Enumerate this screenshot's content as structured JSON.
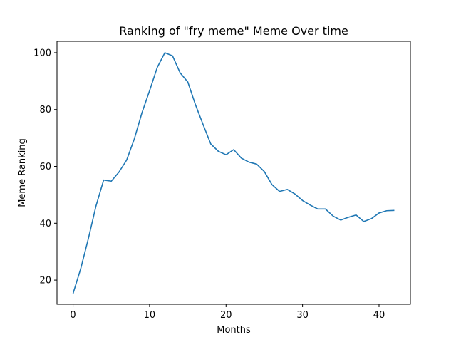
{
  "chart_data": {
    "type": "line",
    "title": "Ranking of \"fry meme\" Meme Over time",
    "xlabel": "Months",
    "ylabel": "Meme Ranking",
    "xlim": [
      -2.1,
      44.1
    ],
    "ylim": [
      11.5,
      104
    ],
    "xticks": [
      0,
      10,
      20,
      30,
      40
    ],
    "yticks": [
      20,
      40,
      60,
      80,
      100
    ],
    "grid": false,
    "color": "#1f77b4",
    "series": [
      {
        "x": [
          0,
          1,
          2,
          3,
          4,
          5,
          6,
          7,
          8,
          9,
          10,
          11,
          12,
          13,
          14,
          15,
          16,
          17,
          18,
          19,
          20,
          21,
          22,
          23,
          24,
          25,
          26,
          27,
          28,
          29,
          30,
          31,
          32,
          33,
          34,
          35,
          36,
          37,
          38,
          39,
          40,
          41,
          42
        ],
        "values": [
          15.3,
          24,
          34.6,
          46.1,
          55.2,
          54.8,
          58,
          62.2,
          69.6,
          78.8,
          86.6,
          94.8,
          100,
          98.9,
          92.9,
          89.7,
          81.7,
          74.7,
          67.9,
          65.3,
          64.1,
          65.9,
          62.9,
          61.5,
          60.8,
          58.2,
          53.6,
          51.2,
          51.9,
          50.3,
          48,
          46.4,
          45,
          45,
          42.5,
          41.1,
          42.1,
          42.9,
          40.6,
          41.6,
          43.6,
          44.4,
          44.5
        ]
      }
    ]
  }
}
